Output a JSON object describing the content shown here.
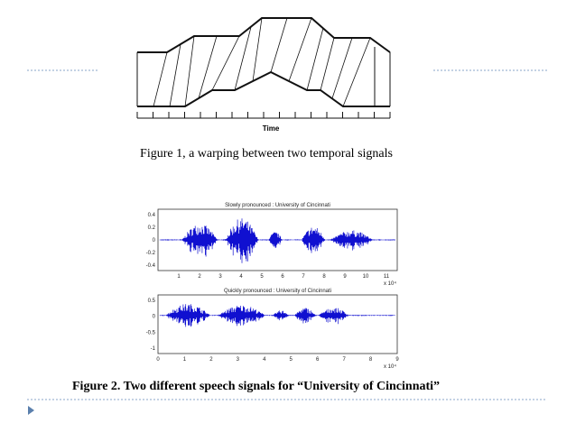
{
  "figure1": {
    "axis_label": "Time",
    "caption": "Figure 1, a warping between two temporal signals"
  },
  "figure2": {
    "panels": [
      {
        "title": "Slowly pronounced : University of Cincinnati",
        "yticks": [
          "0.4",
          "0.2",
          "0",
          "-0.2",
          "-0.4"
        ],
        "xticks": [
          "1",
          "2",
          "3",
          "4",
          "5",
          "6",
          "7",
          "8",
          "9",
          "10",
          "11"
        ],
        "x_multiplier": "x 10⁴"
      },
      {
        "title": "Quickly pronounced : University of Cincinnati",
        "yticks": [
          "0.5",
          "0",
          "-0.5",
          "-1"
        ],
        "xticks": [
          "0",
          "1",
          "2",
          "3",
          "4",
          "5",
          "6",
          "7",
          "8",
          "9"
        ],
        "x_multiplier": "x 10⁴"
      }
    ],
    "caption": "Figure 2. Two different speech signals for “University of Cincinnati”"
  }
}
